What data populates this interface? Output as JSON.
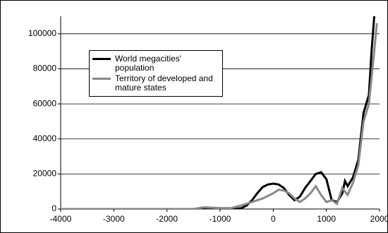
{
  "chart_data": {
    "type": "line",
    "xlim": [
      -4000,
      2000
    ],
    "xticks": [
      -4000,
      -3000,
      -2000,
      -1000,
      0,
      1000,
      2000
    ],
    "ylim": [
      0,
      110000
    ],
    "yticks": [
      0,
      20000,
      40000,
      60000,
      80000,
      100000
    ],
    "grid": true,
    "legend": "upper-left",
    "series": [
      {
        "name": "World megacities' population",
        "color": "#000000",
        "x": [
          -4000,
          -3000,
          -2000,
          -1000,
          -700,
          -600,
          -500,
          -400,
          -300,
          -200,
          -100,
          0,
          100,
          200,
          300,
          400,
          500,
          600,
          700,
          800,
          900,
          1000,
          1100,
          1200,
          1300,
          1350,
          1400,
          1500,
          1600,
          1700,
          1800,
          1850,
          1900
        ],
        "values": [
          0,
          0,
          0,
          0,
          0,
          500,
          2000,
          5000,
          9000,
          12500,
          14000,
          14500,
          14000,
          12000,
          8000,
          5000,
          7000,
          12000,
          16000,
          20000,
          21000,
          17000,
          5000,
          4000,
          9000,
          16000,
          13000,
          18000,
          28000,
          55000,
          65000,
          90000,
          110000
        ]
      },
      {
        "name": "Territory of developed and mature states",
        "color": "#888888",
        "x": [
          -4000,
          -3000,
          -2000,
          -1500,
          -1300,
          -1000,
          -800,
          -600,
          -400,
          -200,
          0,
          100,
          200,
          300,
          400,
          500,
          600,
          700,
          800,
          900,
          1000,
          1100,
          1200,
          1300,
          1400,
          1500,
          1600,
          1700,
          1800,
          1850,
          1900,
          1950
        ],
        "values": [
          0,
          0,
          0,
          0,
          1000,
          500,
          500,
          2000,
          4000,
          6000,
          9000,
          11000,
          10500,
          9000,
          6000,
          4000,
          6000,
          9000,
          13000,
          8000,
          4000,
          5000,
          3000,
          12000,
          8000,
          15000,
          25000,
          50000,
          60000,
          75000,
          90000,
          106000
        ]
      }
    ]
  }
}
